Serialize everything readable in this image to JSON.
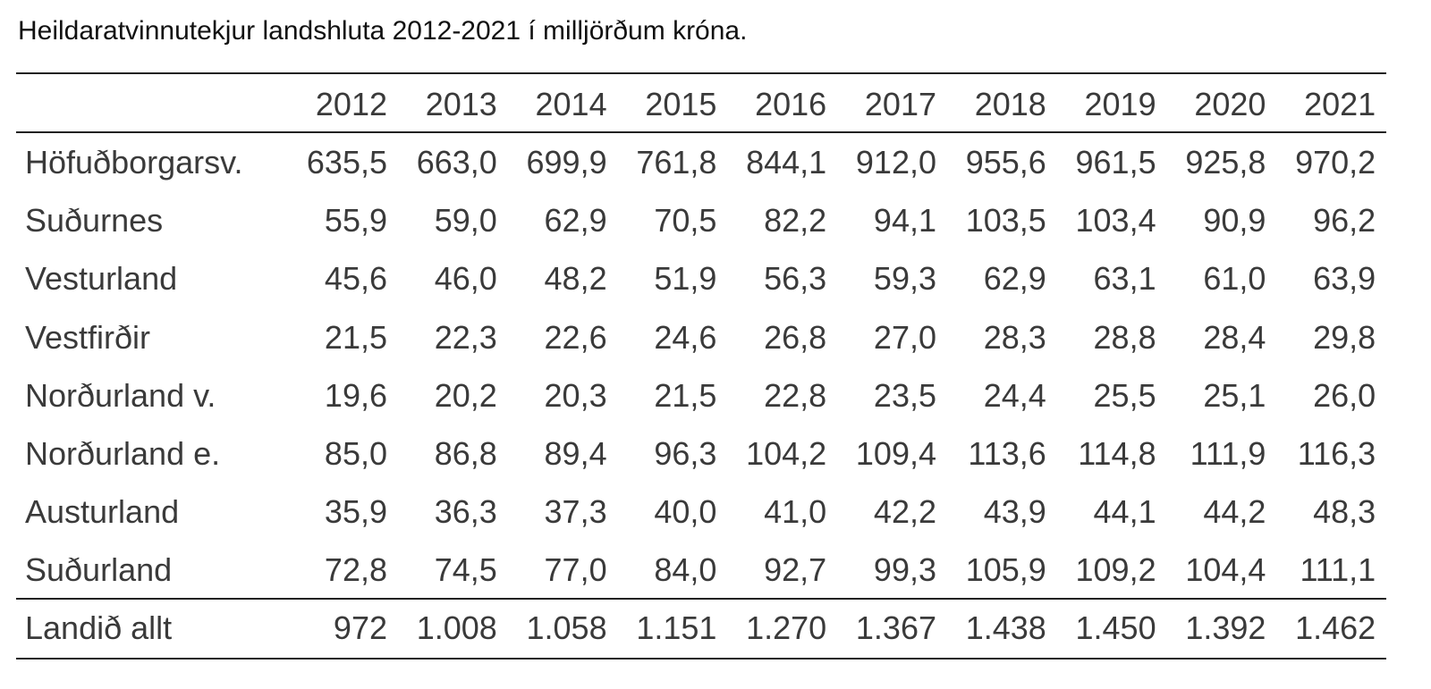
{
  "title": "Heildaratvinnutekjur landshluta 2012-2021 í milljörðum króna.",
  "table": {
    "header": [
      "2012",
      "2013",
      "2014",
      "2015",
      "2016",
      "2017",
      "2018",
      "2019",
      "2020",
      "2021"
    ],
    "rows": [
      [
        "Höfuðborgarsv.",
        "635,5",
        "663,0",
        "699,9",
        "761,8",
        "844,1",
        "912,0",
        "955,6",
        "961,5",
        "925,8",
        "970,2"
      ],
      [
        "Suðurnes",
        "55,9",
        "59,0",
        "62,9",
        "70,5",
        "82,2",
        "94,1",
        "103,5",
        "103,4",
        "90,9",
        "96,2"
      ],
      [
        "Vesturland",
        "45,6",
        "46,0",
        "48,2",
        "51,9",
        "56,3",
        "59,3",
        "62,9",
        "63,1",
        "61,0",
        "63,9"
      ],
      [
        "Vestfirðir",
        "21,5",
        "22,3",
        "22,6",
        "24,6",
        "26,8",
        "27,0",
        "28,3",
        "28,8",
        "28,4",
        "29,8"
      ],
      [
        "Norðurland v.",
        "19,6",
        "20,2",
        "20,3",
        "21,5",
        "22,8",
        "23,5",
        "24,4",
        "25,5",
        "25,1",
        "26,0"
      ],
      [
        "Norðurland e.",
        "85,0",
        "86,8",
        "89,4",
        "96,3",
        "104,2",
        "109,4",
        "113,6",
        "114,8",
        "111,9",
        "116,3"
      ],
      [
        "Austurland",
        "35,9",
        "36,3",
        "37,3",
        "40,0",
        "41,0",
        "42,2",
        "43,9",
        "44,1",
        "44,2",
        "48,3"
      ],
      [
        "Suðurland",
        "72,8",
        "74,5",
        "77,0",
        "84,0",
        "92,7",
        "99,3",
        "105,9",
        "109,2",
        "104,4",
        "111,1"
      ]
    ],
    "total": [
      "Landið allt",
      "972",
      "1.008",
      "1.058",
      "1.151",
      "1.270",
      "1.367",
      "1.438",
      "1.450",
      "1.392",
      "1.462"
    ]
  }
}
